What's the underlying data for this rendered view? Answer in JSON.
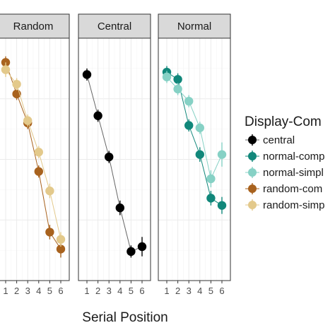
{
  "chart_data": {
    "type": "line",
    "x": [
      1,
      2,
      3,
      4,
      5,
      6
    ],
    "xlabel": "Serial Position",
    "ylabel": "",
    "ylim": [
      0,
      1
    ],
    "grid": true,
    "legend": {
      "title": "Display-Com",
      "placement": "right",
      "entries": [
        {
          "label": "central",
          "color": "#000000"
        },
        {
          "label": "normal-comp",
          "color": "#11877a"
        },
        {
          "label": "normal-simpl",
          "color": "#86d1c5"
        },
        {
          "label": "random-com",
          "color": "#a8621e"
        },
        {
          "label": "random-simp",
          "color": "#e3c98b"
        }
      ]
    },
    "panels": [
      {
        "title": "Random",
        "series": [
          {
            "key": "random-com",
            "color": "#a8621e",
            "values": [
              0.9,
              0.77,
              0.65,
              0.45,
              0.2,
              0.13
            ],
            "err": [
              0.025,
              0.025,
              0.025,
              0.025,
              0.03,
              0.035
            ]
          },
          {
            "key": "random-simp",
            "color": "#e3c98b",
            "values": [
              0.87,
              0.81,
              0.66,
              0.53,
              0.37,
              0.17
            ],
            "err": [
              0.03,
              0.025,
              0.025,
              0.025,
              0.03,
              0.03
            ]
          }
        ]
      },
      {
        "title": "Central",
        "series": [
          {
            "key": "central",
            "color": "#000000",
            "values": [
              0.85,
              0.68,
              0.51,
              0.3,
              0.12,
              0.14
            ],
            "err": [
              0.025,
              0.025,
              0.025,
              0.03,
              0.025,
              0.04
            ]
          }
        ]
      },
      {
        "title": "Normal",
        "series": [
          {
            "key": "normal-comp",
            "color": "#11877a",
            "values": [
              0.86,
              0.83,
              0.64,
              0.52,
              0.34,
              0.31
            ],
            "err": [
              0.025,
              0.025,
              0.025,
              0.03,
              0.03,
              0.035
            ]
          },
          {
            "key": "normal-simpl",
            "color": "#86d1c5",
            "values": [
              0.84,
              0.79,
              0.74,
              0.63,
              0.42,
              0.52
            ],
            "err": [
              0.025,
              0.025,
              0.025,
              0.025,
              0.035,
              0.05
            ]
          }
        ]
      }
    ]
  }
}
